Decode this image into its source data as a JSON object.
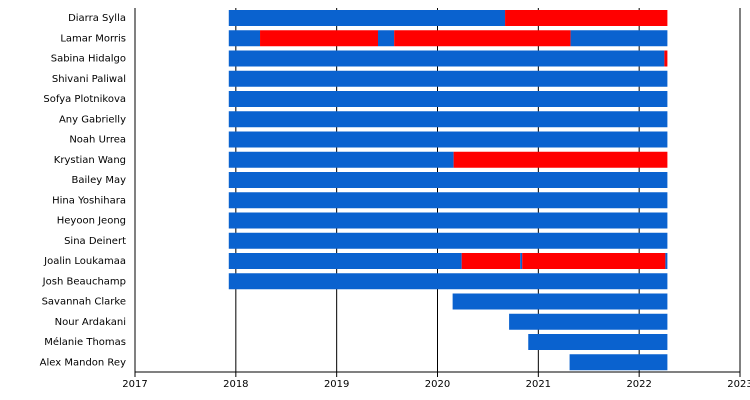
{
  "chart_data": {
    "type": "timeline",
    "xlim": [
      2017,
      2023
    ],
    "xticks": [
      2017,
      2018,
      2019,
      2020,
      2021,
      2022,
      2023
    ],
    "grid": true,
    "rows": [
      {
        "name": "Diarra Sylla",
        "segments": [
          {
            "start": 2017.93,
            "end": 2020.67,
            "color": "#0a62cf"
          },
          {
            "start": 2020.67,
            "end": 2022.28,
            "color": "#ff0000"
          }
        ]
      },
      {
        "name": "Lamar Morris",
        "segments": [
          {
            "start": 2017.93,
            "end": 2018.24,
            "color": "#0a62cf"
          },
          {
            "start": 2018.24,
            "end": 2019.41,
            "color": "#ff0000"
          },
          {
            "start": 2019.41,
            "end": 2019.57,
            "color": "#0a62cf"
          },
          {
            "start": 2019.57,
            "end": 2021.32,
            "color": "#ff0000"
          },
          {
            "start": 2021.32,
            "end": 2022.28,
            "color": "#0a62cf"
          }
        ]
      },
      {
        "name": "Sabina Hidalgo",
        "segments": [
          {
            "start": 2017.93,
            "end": 2022.25,
            "color": "#0a62cf"
          },
          {
            "start": 2022.25,
            "end": 2022.28,
            "color": "#ff0000"
          }
        ]
      },
      {
        "name": "Shivani Paliwal",
        "segments": [
          {
            "start": 2017.93,
            "end": 2022.28,
            "color": "#0a62cf"
          }
        ]
      },
      {
        "name": "Sofya Plotnikova",
        "segments": [
          {
            "start": 2017.93,
            "end": 2022.28,
            "color": "#0a62cf"
          }
        ]
      },
      {
        "name": "Any Gabrielly",
        "segments": [
          {
            "start": 2017.93,
            "end": 2022.28,
            "color": "#0a62cf"
          }
        ]
      },
      {
        "name": "Noah Urrea",
        "segments": [
          {
            "start": 2017.93,
            "end": 2022.28,
            "color": "#0a62cf"
          }
        ]
      },
      {
        "name": "Krystian Wang",
        "segments": [
          {
            "start": 2017.93,
            "end": 2020.16,
            "color": "#0a62cf"
          },
          {
            "start": 2020.16,
            "end": 2022.28,
            "color": "#ff0000"
          }
        ]
      },
      {
        "name": "Bailey May",
        "segments": [
          {
            "start": 2017.93,
            "end": 2022.28,
            "color": "#0a62cf"
          }
        ]
      },
      {
        "name": "Hina Yoshihara",
        "segments": [
          {
            "start": 2017.93,
            "end": 2022.28,
            "color": "#0a62cf"
          }
        ]
      },
      {
        "name": "Heyoon Jeong",
        "segments": [
          {
            "start": 2017.93,
            "end": 2022.28,
            "color": "#0a62cf"
          }
        ]
      },
      {
        "name": "Sina Deinert",
        "segments": [
          {
            "start": 2017.93,
            "end": 2022.28,
            "color": "#0a62cf"
          }
        ]
      },
      {
        "name": "Joalin Loukamaa",
        "segments": [
          {
            "start": 2017.93,
            "end": 2020.24,
            "color": "#0a62cf"
          },
          {
            "start": 2020.24,
            "end": 2020.82,
            "color": "#ff0000"
          },
          {
            "start": 2020.82,
            "end": 2020.84,
            "color": "#0a62cf"
          },
          {
            "start": 2020.84,
            "end": 2022.26,
            "color": "#ff0000"
          },
          {
            "start": 2022.26,
            "end": 2022.28,
            "color": "#0a62cf"
          }
        ]
      },
      {
        "name": "Josh Beauchamp",
        "segments": [
          {
            "start": 2017.93,
            "end": 2022.28,
            "color": "#0a62cf"
          }
        ]
      },
      {
        "name": "Savannah Clarke",
        "segments": [
          {
            "start": 2020.15,
            "end": 2022.28,
            "color": "#0a62cf"
          }
        ]
      },
      {
        "name": "Nour Ardakani",
        "segments": [
          {
            "start": 2020.71,
            "end": 2022.28,
            "color": "#0a62cf"
          }
        ]
      },
      {
        "name": "Mélanie Thomas",
        "segments": [
          {
            "start": 2020.9,
            "end": 2022.28,
            "color": "#0a62cf"
          }
        ]
      },
      {
        "name": "Alex Mandon Rey",
        "segments": [
          {
            "start": 2021.31,
            "end": 2022.28,
            "color": "#0a62cf"
          }
        ]
      }
    ]
  }
}
